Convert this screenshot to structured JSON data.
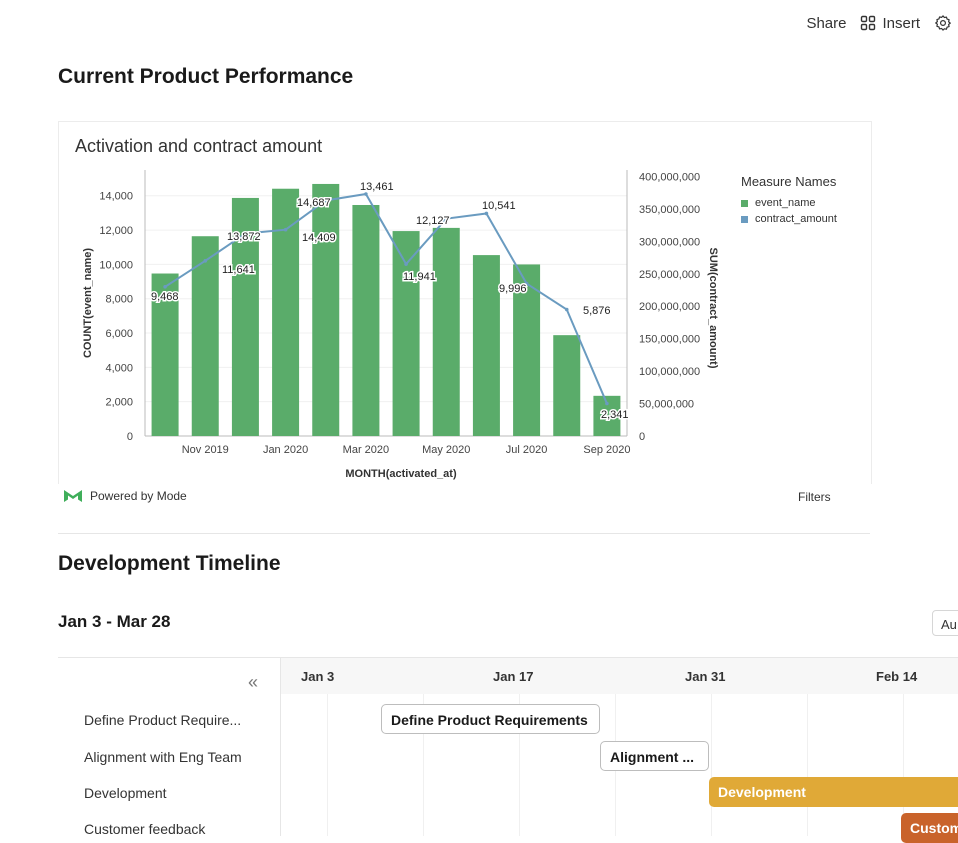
{
  "topbar": {
    "share_label": "Share",
    "insert_label": "Insert"
  },
  "sections": {
    "performance_title": "Current Product Performance",
    "timeline_title": "Development Timeline"
  },
  "chart": {
    "powered_by": "Powered by Mode",
    "filters_label": "Filters"
  },
  "colors": {
    "bar": "#5aac6a",
    "line": "#6a9bc0",
    "development": "#e0a937",
    "customer_feedback": "#c9632b"
  },
  "chart_data": {
    "type": "bar",
    "title": "Activation and contract amount",
    "xlabel": "MONTH(activated_at)",
    "ylabel": "COUNT(event_name)",
    "y2label": "SUM(contract_amount)",
    "categories": [
      "Oct 2019",
      "Nov 2019",
      "Dec 2019",
      "Jan 2020",
      "Feb 2020",
      "Mar 2020",
      "Apr 2020",
      "May 2020",
      "Jun 2020",
      "Jul 2020",
      "Aug 2020",
      "Sep 2020"
    ],
    "x_tick_labels": [
      "Nov 2019",
      "Jan 2020",
      "Mar 2020",
      "May 2020",
      "Jul 2020",
      "Sep 2020"
    ],
    "ylim": [
      0,
      15500
    ],
    "y2lim": [
      0,
      410000000
    ],
    "y_ticks": [
      "0",
      "2,000",
      "4,000",
      "6,000",
      "8,000",
      "10,000",
      "12,000",
      "14,000"
    ],
    "y2_ticks": [
      "0",
      "50,000,000",
      "100,000,000",
      "150,000,000",
      "200,000,000",
      "250,000,000",
      "300,000,000",
      "350,000,000",
      "400,000,000"
    ],
    "series": [
      {
        "name": "event_name",
        "kind": "bar",
        "axis": "left",
        "values": [
          9468,
          11641,
          13872,
          14409,
          14687,
          13461,
          11941,
          12127,
          10541,
          9996,
          5876,
          2341
        ],
        "labels": [
          "9,468",
          "11,641",
          "13,872",
          "14,409",
          "14,687",
          "13,461",
          "11,941",
          "12,127",
          "10,541",
          "9,996",
          "5,876",
          "2,341"
        ]
      },
      {
        "name": "contract_amount",
        "kind": "line",
        "axis": "right",
        "values": [
          230000000,
          270000000,
          312000000,
          318000000,
          363000000,
          373000000,
          265000000,
          335000000,
          343000000,
          235000000,
          195000000,
          50000000
        ]
      }
    ],
    "legend": {
      "title": "Measure Names",
      "position": "right"
    }
  },
  "timeline": {
    "range_label": "Jan 3 - Mar 28",
    "auto_label": "Au",
    "collapse_symbol": "«",
    "date_labels": [
      "Jan 3",
      "Jan 17",
      "Jan 31",
      "Feb 14"
    ],
    "tasks": [
      {
        "name": "Define Product Require...",
        "bar_label": "Define Product Requirements"
      },
      {
        "name": "Alignment with Eng Team",
        "bar_label": "Alignment ..."
      },
      {
        "name": "Development",
        "bar_label": "Development"
      },
      {
        "name": "Customer feedback",
        "bar_label": "Custom"
      }
    ]
  }
}
